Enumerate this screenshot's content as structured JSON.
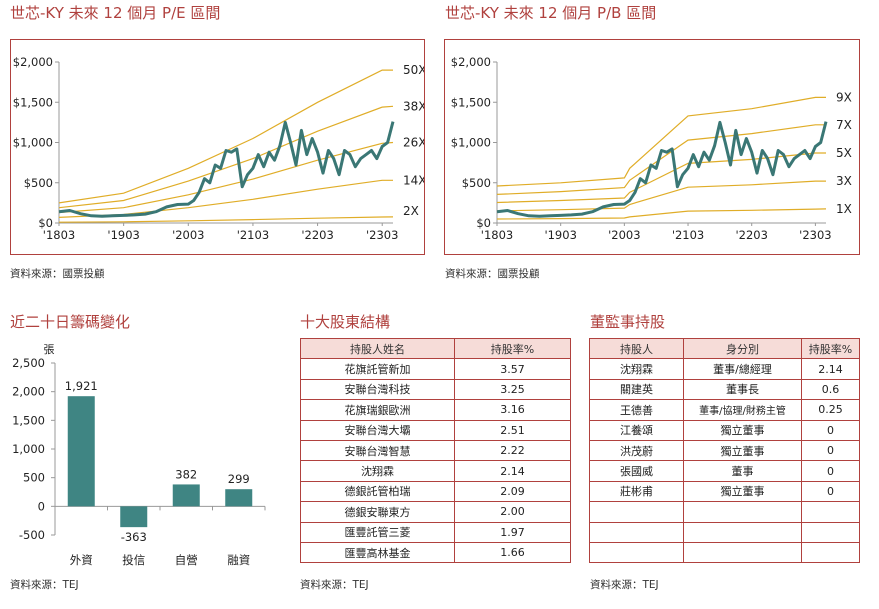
{
  "pe": {
    "title": "世芯-KY 未來 12 個月 P/E 區間",
    "source": "資料來源：國票投顧"
  },
  "pb": {
    "title": "世芯-KY 未來 12 個月 P/B 區間",
    "source": "資料來源：國票投顧"
  },
  "chips": {
    "title": "近二十日籌碼變化",
    "source": "資料來源：TEJ"
  },
  "holders": {
    "title": "十大股東結構",
    "source": "資料來源：TEJ",
    "headers": [
      "持股人姓名",
      "持股率%"
    ],
    "rows": [
      [
        "花旗託管新加",
        "3.57"
      ],
      [
        "安聯台灣科技",
        "3.25"
      ],
      [
        "花旗瑞銀歐洲",
        "3.16"
      ],
      [
        "安聯台灣大壩",
        "2.51"
      ],
      [
        "安聯台灣智慧",
        "2.22"
      ],
      [
        "沈翔霖",
        "2.14"
      ],
      [
        "德銀託管柏瑞",
        "2.09"
      ],
      [
        "德銀安聯東方",
        "2.00"
      ],
      [
        "匯豐託管三菱",
        "1.97"
      ],
      [
        "匯豐高林基金",
        "1.66"
      ]
    ]
  },
  "board": {
    "title": "董監事持股",
    "source": "資料來源：TEJ",
    "headers": [
      "持股人",
      "身分別",
      "持股率%"
    ],
    "rows": [
      [
        "沈翔霖",
        "董事/總經理",
        "2.14"
      ],
      [
        "關建英",
        "董事長",
        "0.6"
      ],
      [
        "王德善",
        "董事/協理/財務主管",
        "0.25"
      ],
      [
        "江養頌",
        "獨立董事",
        "0"
      ],
      [
        "洪茂蔚",
        "獨立董事",
        "0"
      ],
      [
        "張國威",
        "董事",
        "0"
      ],
      [
        "莊彬甫",
        "獨立董事",
        "0"
      ],
      [
        "",
        "",
        ""
      ],
      [
        "",
        "",
        ""
      ],
      [
        "",
        "",
        ""
      ]
    ]
  },
  "colors": {
    "accent": "#b0413e",
    "price_line": "#3a7775",
    "band_line": "#e0ad28",
    "bar": "#3f8583",
    "header_fill": "#f6dcd8"
  },
  "chart_data": [
    {
      "type": "line",
      "title": "世芯-KY 未來 12 個月 P/E 區間",
      "x_ticks": [
        "'1803",
        "'1903",
        "'2003",
        "'2103",
        "'2203",
        "'2303"
      ],
      "x_range": [
        "2018-03",
        "2023-05"
      ],
      "ylim": [
        0,
        2000
      ],
      "y_ticks": [
        "$0",
        "$500",
        "$1,000",
        "$1,500",
        "$2,000"
      ],
      "y_tick_values": [
        0,
        500,
        1000,
        1500,
        2000
      ],
      "bands": [
        {
          "name": "50X",
          "x": [
            0,
            12,
            24,
            36,
            48,
            60,
            62
          ],
          "values": [
            250,
            370,
            680,
            1050,
            1500,
            1900,
            1900
          ]
        },
        {
          "name": "38X",
          "x": [
            0,
            12,
            24,
            36,
            48,
            60,
            62
          ],
          "values": [
            190,
            280,
            520,
            800,
            1140,
            1440,
            1450
          ]
        },
        {
          "name": "26X",
          "x": [
            0,
            12,
            24,
            36,
            48,
            60,
            62
          ],
          "values": [
            130,
            190,
            350,
            545,
            780,
            990,
            1000
          ]
        },
        {
          "name": "14X",
          "x": [
            0,
            12,
            24,
            36,
            48,
            60,
            62
          ],
          "values": [
            70,
            105,
            190,
            295,
            420,
            530,
            530
          ]
        },
        {
          "name": "2X",
          "x": [
            0,
            12,
            24,
            36,
            48,
            60,
            62
          ],
          "values": [
            10,
            15,
            27,
            42,
            60,
            75,
            76
          ]
        }
      ],
      "price": {
        "x": [
          0,
          2,
          4,
          6,
          8,
          10,
          12,
          14,
          16,
          18,
          20,
          22,
          24,
          25,
          26,
          27,
          28,
          29,
          30,
          31,
          32,
          33,
          34,
          35,
          36,
          37,
          38,
          39,
          40,
          41,
          42,
          43,
          44,
          45,
          46,
          47,
          48,
          49,
          50,
          51,
          52,
          53,
          54,
          55,
          56,
          57,
          58,
          59,
          60,
          61,
          62
        ],
        "values": [
          140,
          155,
          115,
          90,
          85,
          90,
          95,
          100,
          110,
          140,
          200,
          230,
          235,
          280,
          380,
          550,
          500,
          720,
          680,
          900,
          880,
          920,
          450,
          600,
          680,
          850,
          700,
          880,
          780,
          960,
          1250,
          1000,
          720,
          1150,
          850,
          1050,
          880,
          620,
          900,
          800,
          600,
          900,
          850,
          700,
          800,
          850,
          900,
          800,
          950,
          1000,
          1260
        ]
      }
    },
    {
      "type": "line",
      "title": "世芯-KY 未來 12 個月 P/B 區間",
      "x_ticks": [
        "'1803",
        "'1903",
        "'2003",
        "'2103",
        "'2203",
        "'2303"
      ],
      "x_range": [
        "2018-03",
        "2023-05"
      ],
      "ylim": [
        0,
        2000
      ],
      "y_ticks": [
        "$0",
        "$500",
        "$1,000",
        "$1,500",
        "$2,000"
      ],
      "y_tick_values": [
        0,
        500,
        1000,
        1500,
        2000
      ],
      "bands": [
        {
          "name": "9X",
          "x": [
            0,
            12,
            24,
            25,
            36,
            48,
            60,
            62
          ],
          "values": [
            460,
            500,
            560,
            680,
            1330,
            1420,
            1560,
            1560
          ]
        },
        {
          "name": "7X",
          "x": [
            0,
            12,
            24,
            25,
            36,
            48,
            60,
            62
          ],
          "values": [
            355,
            390,
            440,
            530,
            1030,
            1110,
            1220,
            1220
          ]
        },
        {
          "name": "5X",
          "x": [
            0,
            12,
            24,
            25,
            36,
            48,
            60,
            62
          ],
          "values": [
            255,
            280,
            310,
            380,
            740,
            790,
            870,
            870
          ]
        },
        {
          "name": "3X",
          "x": [
            0,
            12,
            24,
            25,
            36,
            48,
            60,
            62
          ],
          "values": [
            150,
            165,
            185,
            230,
            445,
            475,
            520,
            520
          ]
        },
        {
          "name": "1X",
          "x": [
            0,
            12,
            24,
            25,
            36,
            48,
            60,
            62
          ],
          "values": [
            50,
            55,
            62,
            76,
            148,
            158,
            173,
            175
          ]
        }
      ],
      "price": {
        "x": [
          0,
          2,
          4,
          6,
          8,
          10,
          12,
          14,
          16,
          18,
          20,
          22,
          24,
          25,
          26,
          27,
          28,
          29,
          30,
          31,
          32,
          33,
          34,
          35,
          36,
          37,
          38,
          39,
          40,
          41,
          42,
          43,
          44,
          45,
          46,
          47,
          48,
          49,
          50,
          51,
          52,
          53,
          54,
          55,
          56,
          57,
          58,
          59,
          60,
          61,
          62
        ],
        "values": [
          140,
          155,
          115,
          90,
          85,
          90,
          95,
          100,
          110,
          140,
          200,
          230,
          235,
          280,
          380,
          550,
          500,
          720,
          680,
          900,
          880,
          920,
          450,
          600,
          680,
          850,
          700,
          880,
          780,
          960,
          1250,
          1000,
          720,
          1150,
          850,
          1050,
          880,
          620,
          900,
          800,
          600,
          900,
          850,
          700,
          800,
          850,
          900,
          800,
          950,
          1000,
          1260
        ]
      }
    },
    {
      "type": "bar",
      "title": "近二十日籌碼變化",
      "ylabel": "張",
      "categories": [
        "外資",
        "投信",
        "自營",
        "融資"
      ],
      "values": [
        1921,
        -363,
        382,
        299
      ],
      "value_labels": [
        "1,921",
        "-363",
        "382",
        "299"
      ],
      "ylim": [
        -500,
        2500
      ],
      "y_ticks": [
        "-500",
        "0",
        "500",
        "1,000",
        "1,500",
        "2,000",
        "2,500"
      ],
      "y_tick_values": [
        -500,
        0,
        500,
        1000,
        1500,
        2000,
        2500
      ]
    }
  ]
}
